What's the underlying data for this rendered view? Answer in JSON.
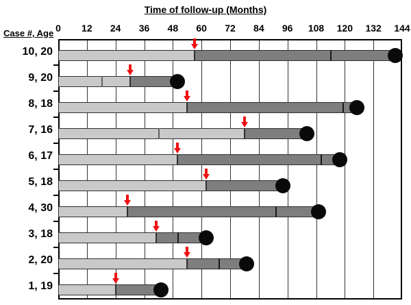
{
  "chart_data": {
    "type": "bar",
    "variant": "gantt-timeline",
    "title": "Time of follow-up (Months)",
    "ylabel": "Case #, Age",
    "xlabel": "Time of follow-up (Months)",
    "xlim": [
      0,
      144
    ],
    "x_ticks": [
      0,
      12,
      24,
      36,
      48,
      60,
      72,
      84,
      96,
      108,
      120,
      132,
      144
    ],
    "grid": "vertical-only",
    "legend": false,
    "rows": [
      {
        "label": "10, 20",
        "light_start": 0,
        "light_end": 57,
        "light_divider": null,
        "dark_end": 141,
        "dark_divider": 114,
        "arrow_month": 57,
        "end_circle": 141
      },
      {
        "label": "9, 20",
        "light_start": 0,
        "light_end": 30,
        "light_divider": 18,
        "dark_end": 50,
        "dark_divider": null,
        "arrow_month": 30,
        "end_circle": 50
      },
      {
        "label": "8, 18",
        "light_start": 0,
        "light_end": 54,
        "light_divider": null,
        "dark_end": 125,
        "dark_divider": 119,
        "arrow_month": 54,
        "end_circle": 125
      },
      {
        "label": "7, 16",
        "light_start": 0,
        "light_end": 78,
        "light_divider": 42,
        "dark_end": 104,
        "dark_divider": null,
        "arrow_month": 78,
        "end_circle": 104
      },
      {
        "label": "6, 17",
        "light_start": 0,
        "light_end": 50,
        "light_divider": null,
        "dark_end": 118,
        "dark_divider": 110,
        "arrow_month": 50,
        "end_circle": 118
      },
      {
        "label": "5, 18",
        "light_start": 0,
        "light_end": 62,
        "light_divider": null,
        "dark_end": 94,
        "dark_divider": null,
        "arrow_month": 62,
        "end_circle": 94
      },
      {
        "label": "4, 30",
        "light_start": 0,
        "light_end": 29,
        "light_divider": null,
        "dark_end": 109,
        "dark_divider": 91,
        "arrow_month": 29,
        "end_circle": 109
      },
      {
        "label": "3, 18",
        "light_start": 0,
        "light_end": 41,
        "light_divider": null,
        "dark_end": 62,
        "dark_divider": 50,
        "arrow_month": 41,
        "end_circle": 62
      },
      {
        "label": "2, 20",
        "light_start": 0,
        "light_end": 54,
        "light_divider": null,
        "dark_end": 79,
        "dark_divider": 67,
        "arrow_month": 54,
        "end_circle": 79
      },
      {
        "label": "1, 19",
        "light_start": 0,
        "light_end": 24,
        "light_divider": null,
        "dark_end": 43,
        "dark_divider": null,
        "arrow_month": 24,
        "end_circle": 43
      }
    ]
  },
  "colors": {
    "light_bar": "#c9c9c9",
    "dark_bar": "#7e7e7e",
    "bar_outline": "#2f2f2f",
    "light_divider": "#606060",
    "dark_divider": "#1a1a1a",
    "arrow_red": "#ee1111",
    "end_circle": "#0a0a0a",
    "gridline": "#333333",
    "axis": "#000000"
  }
}
